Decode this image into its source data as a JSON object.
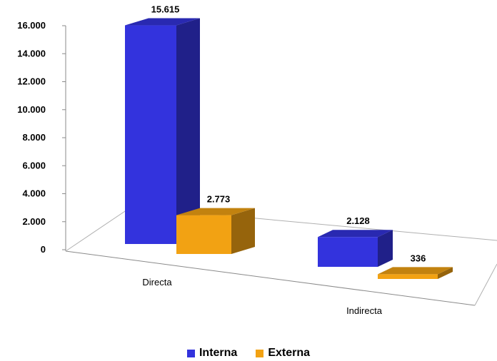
{
  "chart_data": {
    "type": "bar",
    "categories": [
      "Directa",
      "Indirecta"
    ],
    "series": [
      {
        "name": "Interna",
        "values": [
          15615,
          2128
        ],
        "labels": [
          "15.615",
          "2.128"
        ]
      },
      {
        "name": "Externa",
        "values": [
          2773,
          336
        ],
        "labels": [
          "2.773",
          "336"
        ]
      }
    ],
    "y_ticks": [
      "0",
      "2.000",
      "4.000",
      "6.000",
      "8.000",
      "10.000",
      "12.000",
      "14.000",
      "16.000"
    ],
    "ylim": [
      0,
      16000
    ],
    "legend_position": "bottom",
    "colors": {
      "Interna": "#3333dd",
      "Externa": "#f2a213"
    },
    "grid": false,
    "style": "3d-columns"
  }
}
